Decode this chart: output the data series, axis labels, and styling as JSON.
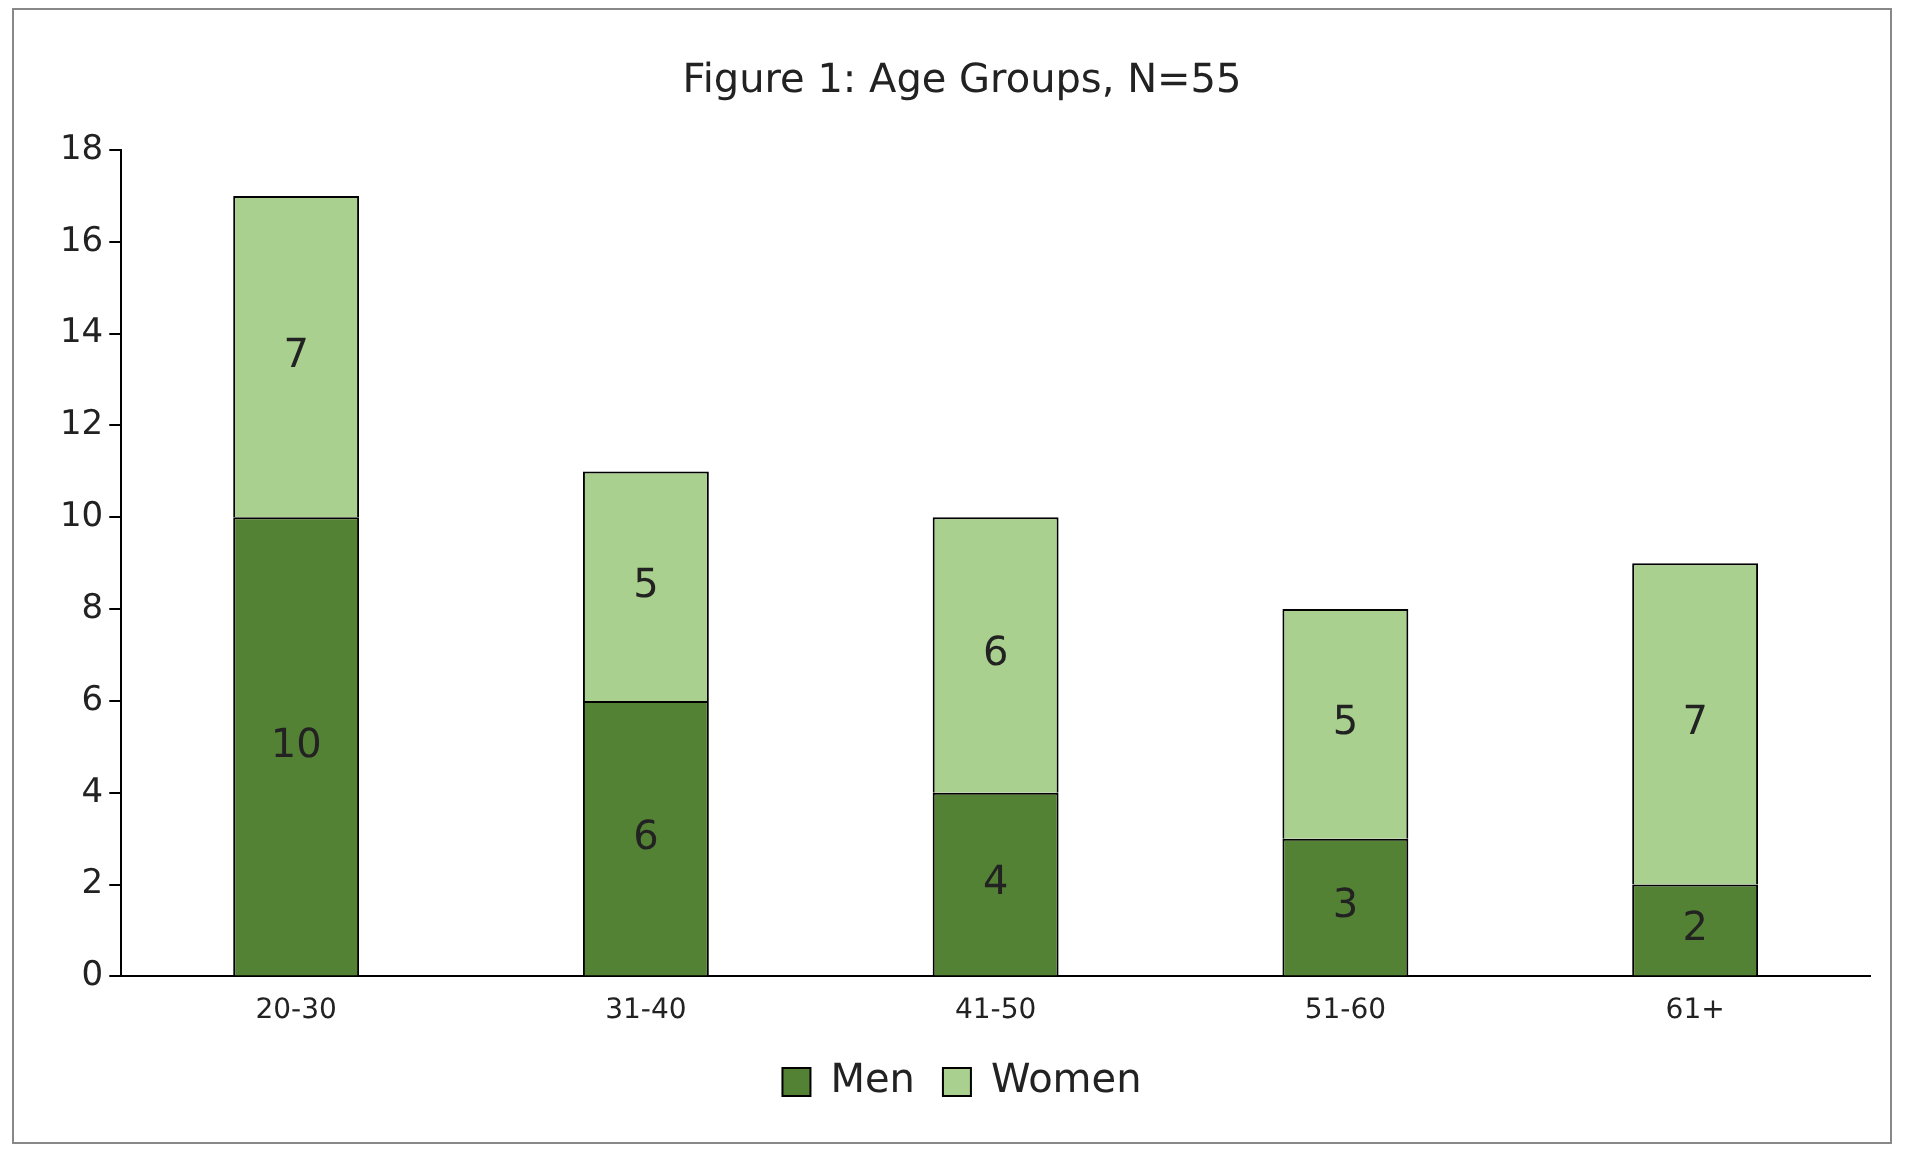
{
  "chart_data": {
    "type": "bar",
    "title": "Figure 1: Age Groups, N=55",
    "categories": [
      "20-30",
      "31-40",
      "41-50",
      "51-60",
      "61+"
    ],
    "stacked": true,
    "data_labels": true,
    "legend": "bottom",
    "ylim": [
      0,
      18
    ],
    "yticks": [
      0,
      2,
      4,
      6,
      8,
      10,
      12,
      14,
      16,
      18
    ],
    "series": [
      {
        "name": "Men",
        "color": "#548235",
        "values": [
          10,
          6,
          4,
          3,
          2
        ]
      },
      {
        "name": "Women",
        "color": "#a9d08e",
        "values": [
          7,
          5,
          6,
          5,
          7
        ]
      }
    ]
  }
}
